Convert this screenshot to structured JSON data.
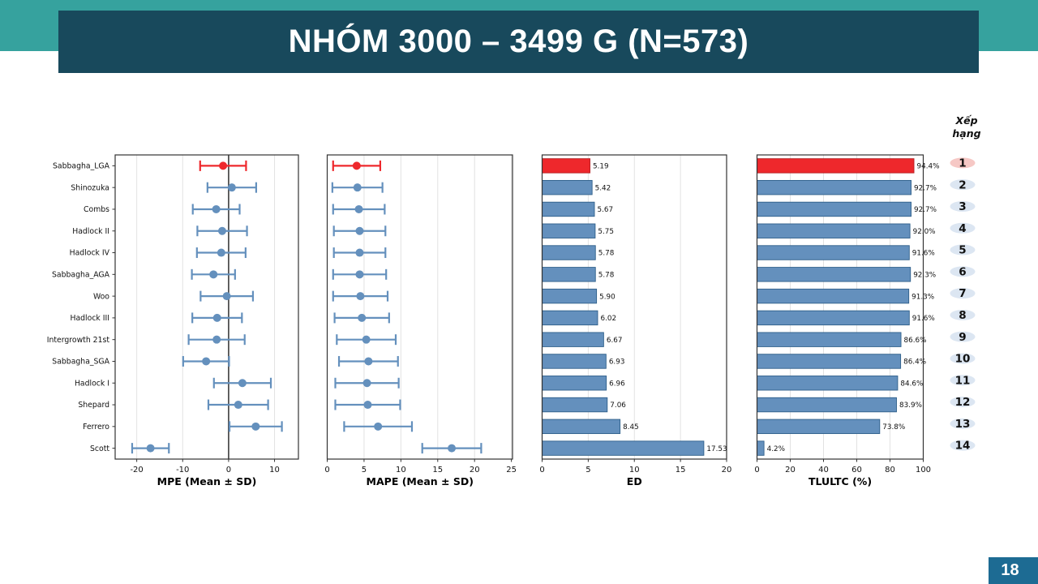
{
  "slide": {
    "title": "NHÓM 3000 – 3499 G (N=573)",
    "page_number": "18"
  },
  "ranking": {
    "header_line1": "Xếp",
    "header_line2": "hạng",
    "ranks": [
      "1",
      "2",
      "3",
      "4",
      "5",
      "6",
      "7",
      "8",
      "9",
      "10",
      "11",
      "12",
      "13",
      "14"
    ],
    "highlight_rank_index": 0
  },
  "colors": {
    "accent_teal": "#36a29e",
    "title_bar": "#18495c",
    "page_box": "#1d6b93",
    "series_blue": "#6490bd",
    "series_blue_edge": "#2e5f8a",
    "series_red": "#ee282c",
    "series_red_edge": "#b51d20",
    "rank_badge_blue": "#dce6f2",
    "rank_badge_pink": "#f6c8c5",
    "grid": "#e2e2e2",
    "spine": "#333333",
    "zero_line": "#3c3c3c",
    "text": "#111111"
  },
  "chart_data": [
    {
      "type": "errorbar",
      "xlabel": "MPE (Mean ± SD)",
      "categories": [
        "Sabbagha_LGA",
        "Shinozuka",
        "Combs",
        "Hadlock II",
        "Hadlock IV",
        "Sabbagha_AGA",
        "Woo",
        "Hadlock III",
        "Intergrowth 21st",
        "Sabbagha_SGA",
        "Hadlock I",
        "Shepard",
        "Ferrero",
        "Scott"
      ],
      "means": [
        -1.2,
        0.7,
        -2.7,
        -1.4,
        -1.6,
        -3.3,
        -0.4,
        -2.5,
        -2.6,
        -4.9,
        3.0,
        2.1,
        5.9,
        -17.0
      ],
      "sds": [
        5.0,
        5.3,
        5.1,
        5.4,
        5.3,
        4.7,
        5.7,
        5.4,
        6.1,
        5.0,
        6.2,
        6.5,
        5.7,
        4.0
      ],
      "xticks": [
        -20,
        -10,
        0,
        10
      ],
      "xlim": [
        -24.7,
        15.2
      ],
      "zero_line": true,
      "grid": true,
      "highlight_index": 0
    },
    {
      "type": "errorbar",
      "xlabel": "MAPE (Mean ± SD)",
      "means": [
        4.0,
        4.1,
        4.3,
        4.4,
        4.4,
        4.4,
        4.5,
        4.7,
        5.3,
        5.6,
        5.4,
        5.5,
        6.9,
        16.9
      ],
      "sds": [
        3.2,
        3.4,
        3.5,
        3.5,
        3.5,
        3.6,
        3.7,
        3.7,
        4.0,
        4.0,
        4.3,
        4.4,
        4.6,
        4.0
      ],
      "xticks": [
        0,
        5,
        10,
        15,
        20,
        25
      ],
      "xlim": [
        0,
        25.15
      ],
      "zero_line": false,
      "grid": true,
      "highlight_index": 0
    },
    {
      "type": "bar",
      "xlabel": "ED",
      "values": [
        5.19,
        5.42,
        5.67,
        5.75,
        5.78,
        5.78,
        5.9,
        6.02,
        6.67,
        6.93,
        6.96,
        7.06,
        8.45,
        17.53
      ],
      "value_labels": [
        "5.19",
        "5.42",
        "5.67",
        "5.75",
        "5.78",
        "5.78",
        "5.90",
        "6.02",
        "6.67",
        "6.93",
        "6.96",
        "7.06",
        "8.45",
        "17.53"
      ],
      "xticks": [
        0,
        5,
        10,
        15,
        20
      ],
      "xlim": [
        0,
        20
      ],
      "grid": true,
      "highlight_index": 0
    },
    {
      "type": "bar",
      "xlabel": "TLULTC (%)",
      "values": [
        94.4,
        92.7,
        92.7,
        92.0,
        91.6,
        92.3,
        91.3,
        91.6,
        86.6,
        86.4,
        84.6,
        83.9,
        73.8,
        4.2
      ],
      "value_labels": [
        "94.4%",
        "92.7%",
        "92.7%",
        "92.0%",
        "91.6%",
        "92.3%",
        "91.3%",
        "91.6%",
        "86.6%",
        "86.4%",
        "84.6%",
        "83.9%",
        "73.8%",
        "4.2%"
      ],
      "xticks": [
        0,
        20,
        40,
        60,
        80,
        100
      ],
      "xlim": [
        0,
        100
      ],
      "grid": true,
      "highlight_index": 0
    }
  ]
}
